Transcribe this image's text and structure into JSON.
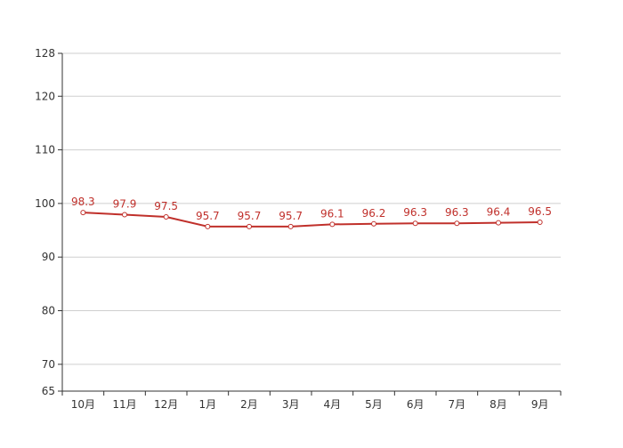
{
  "chart_data": {
    "type": "line",
    "title": "",
    "xlabel": "",
    "ylabel": "",
    "categories": [
      "10月",
      "11月",
      "12月",
      "1月",
      "2月",
      "3月",
      "4月",
      "5月",
      "6月",
      "7月",
      "8月",
      "9月"
    ],
    "series": [
      {
        "values": [
          98.3,
          97.9,
          97.5,
          95.7,
          95.7,
          95.7,
          96.1,
          96.2,
          96.3,
          96.3,
          96.4,
          96.5
        ],
        "labels": [
          "98.3",
          "97.9",
          "97.5",
          "95.7",
          "95.7",
          "95.7",
          "96.1",
          "96.2",
          "96.3",
          "96.3",
          "96.4",
          "96.5"
        ],
        "color": "#c0302b"
      }
    ],
    "ylim": [
      65,
      128
    ],
    "yticks": [
      65,
      70,
      80,
      90,
      100,
      110,
      120,
      128
    ],
    "ytick_labels": [
      "65",
      "70",
      "80",
      "90",
      "100",
      "110",
      "120",
      "128"
    ],
    "grid": true,
    "legend": "none",
    "colors": {
      "axis": "#333333",
      "grid": "#cfcfcf",
      "tick_text": "#333333"
    }
  }
}
